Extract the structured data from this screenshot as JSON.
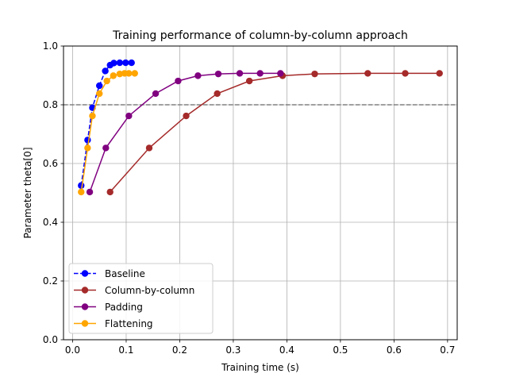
{
  "chart_data": {
    "type": "line",
    "title": "Training performance of column-by-column approach",
    "xlabel": "Training time (s)",
    "ylabel": "Parameter theta[0]",
    "xlim": [
      -0.017,
      0.718
    ],
    "ylim": [
      0.0,
      1.0
    ],
    "xticks": [
      0.0,
      0.1,
      0.2,
      0.3,
      0.4,
      0.5,
      0.6,
      0.7
    ],
    "xtick_labels": [
      "0.0",
      "0.1",
      "0.2",
      "0.3",
      "0.4",
      "0.5",
      "0.6",
      "0.7"
    ],
    "yticks": [
      0.0,
      0.2,
      0.4,
      0.6,
      0.8,
      1.0
    ],
    "ytick_labels": [
      "0.0",
      "0.2",
      "0.4",
      "0.6",
      "0.8",
      "1.0"
    ],
    "grid": true,
    "legend_position": "lower-left",
    "reference_line": {
      "y": 0.8,
      "color": "#808080",
      "style": "dashed"
    },
    "series": [
      {
        "name": "Baseline",
        "color": "#0000ff",
        "style": "dashed",
        "x": [
          0.016,
          0.028,
          0.037,
          0.05,
          0.061,
          0.07,
          0.077,
          0.088,
          0.099,
          0.11
        ],
        "y": [
          0.525,
          0.68,
          0.79,
          0.865,
          0.915,
          0.935,
          0.942,
          0.943,
          0.943,
          0.943
        ]
      },
      {
        "name": "Column-by-column",
        "color": "#a52a2a",
        "style": "solid",
        "x": [
          0.07,
          0.143,
          0.212,
          0.27,
          0.33,
          0.392,
          0.452,
          0.551,
          0.621,
          0.685
        ],
        "y": [
          0.503,
          0.653,
          0.762,
          0.838,
          0.881,
          0.899,
          0.905,
          0.907,
          0.907,
          0.907
        ]
      },
      {
        "name": "Padding",
        "color": "#800080",
        "style": "solid",
        "x": [
          0.032,
          0.062,
          0.105,
          0.155,
          0.197,
          0.234,
          0.272,
          0.312,
          0.35,
          0.388
        ],
        "y": [
          0.503,
          0.653,
          0.762,
          0.838,
          0.881,
          0.899,
          0.905,
          0.907,
          0.907,
          0.907
        ]
      },
      {
        "name": "Flattening",
        "color": "#ffa500",
        "style": "solid",
        "x": [
          0.016,
          0.028,
          0.037,
          0.05,
          0.064,
          0.076,
          0.088,
          0.097,
          0.105,
          0.116
        ],
        "y": [
          0.503,
          0.653,
          0.762,
          0.838,
          0.881,
          0.899,
          0.905,
          0.907,
          0.907,
          0.907
        ]
      }
    ]
  }
}
